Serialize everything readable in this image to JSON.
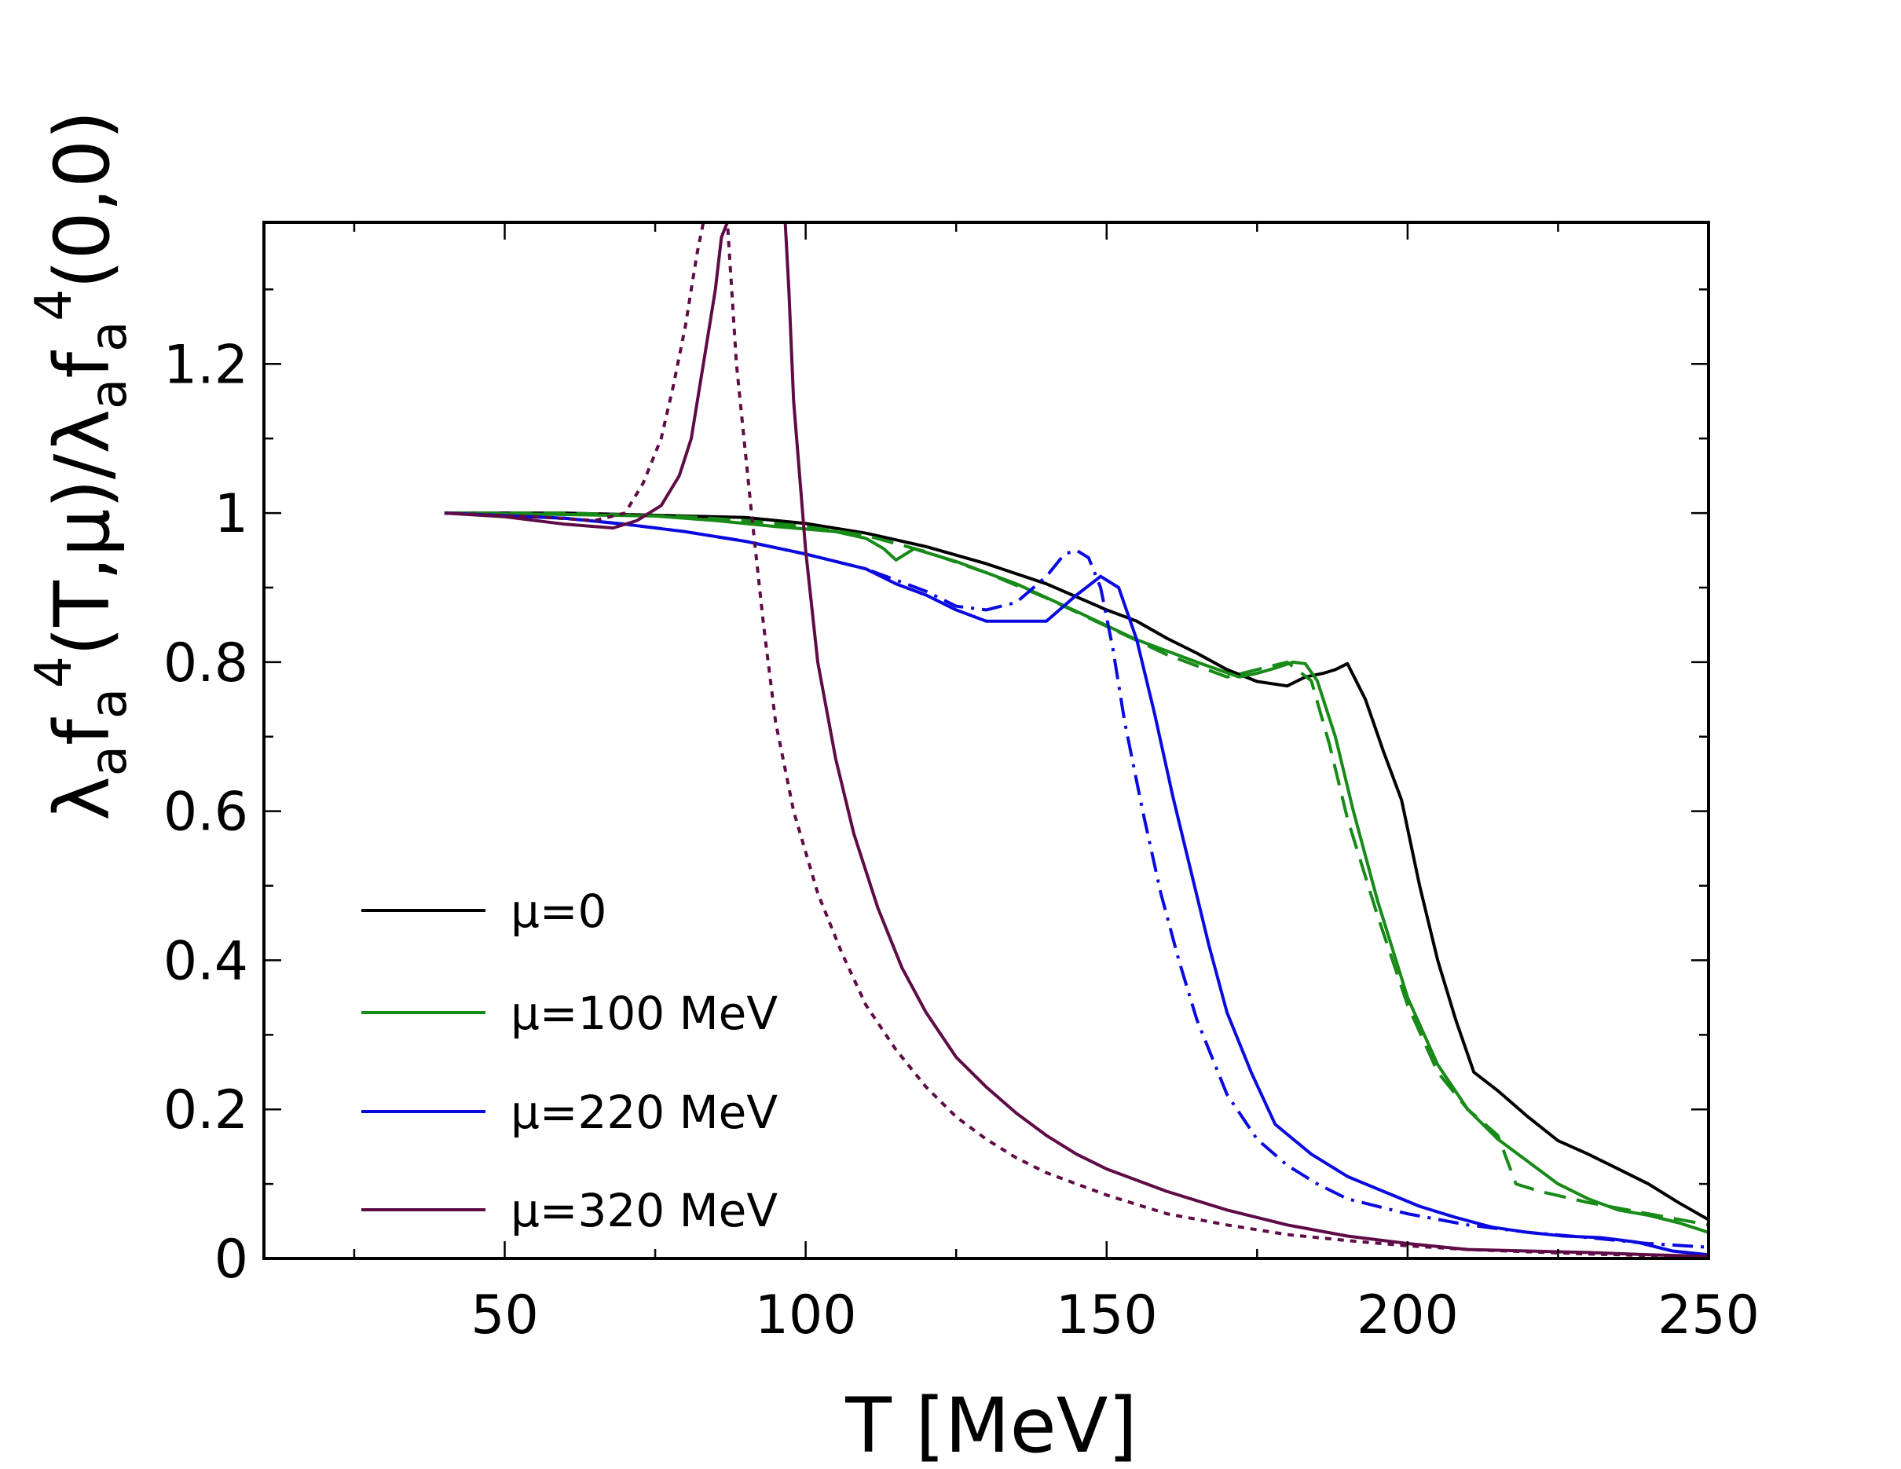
{
  "chart_data": {
    "type": "line",
    "title": "",
    "xlabel": "T [MeV]",
    "ylabel": {
      "main": "λ",
      "sub1": "a",
      "part2": "f",
      "sub2": "a",
      "sup2": "4",
      "part3": "(T,μ)/λ",
      "sub3": "a",
      "part4": "f",
      "sub4": "a",
      "sup4": "4",
      "part5": "(0,0)"
    },
    "xlim": [
      10,
      250
    ],
    "ylim": [
      0,
      1.39
    ],
    "xticks": [
      50,
      100,
      150,
      200,
      250
    ],
    "xtick_labels": [
      "50",
      "100",
      "150",
      "200",
      "250"
    ],
    "yticks": [
      0,
      0.2,
      0.4,
      0.6,
      0.8,
      1,
      1.2
    ],
    "ytick_labels": [
      "0",
      "0.2",
      "0.4",
      "0.6",
      "0.8",
      "1",
      "1.2"
    ],
    "legend_position": "lower-left",
    "legend": [
      "μ=0",
      "μ=100 MeV",
      "μ=220 MeV",
      "μ=320 MeV"
    ],
    "series": [
      {
        "name": "μ=0",
        "color": "#000000",
        "dash": "solid",
        "x": [
          40,
          60,
          80,
          90,
          100,
          110,
          120,
          130,
          140,
          150,
          155,
          160,
          165,
          170,
          175,
          180,
          183,
          186,
          188,
          190,
          193,
          196,
          199,
          202,
          205,
          208,
          211,
          215,
          220,
          225,
          230,
          235,
          240,
          245,
          250
        ],
        "y": [
          1.0,
          1.0,
          0.996,
          0.994,
          0.986,
          0.973,
          0.955,
          0.932,
          0.905,
          0.87,
          0.855,
          0.832,
          0.812,
          0.79,
          0.774,
          0.768,
          0.78,
          0.785,
          0.79,
          0.798,
          0.75,
          0.68,
          0.615,
          0.5,
          0.4,
          0.32,
          0.25,
          0.225,
          0.19,
          0.158,
          0.14,
          0.12,
          0.1,
          0.075,
          0.052
        ]
      },
      {
        "name": "μ=100 MeV (solid)",
        "color": "#178a17",
        "dash": "solid",
        "x": [
          40,
          60,
          75,
          85,
          95,
          105,
          110,
          113,
          115,
          118,
          125,
          135,
          145,
          155,
          165,
          172,
          175,
          178,
          181,
          183,
          185,
          188,
          191,
          195,
          200,
          205,
          210,
          215,
          220,
          225,
          230,
          235,
          240,
          245,
          250
        ],
        "y": [
          1.0,
          0.998,
          0.996,
          0.99,
          0.982,
          0.975,
          0.966,
          0.952,
          0.937,
          0.952,
          0.935,
          0.905,
          0.868,
          0.83,
          0.8,
          0.78,
          0.785,
          0.792,
          0.8,
          0.798,
          0.775,
          0.7,
          0.6,
          0.48,
          0.35,
          0.26,
          0.2,
          0.16,
          0.13,
          0.1,
          0.08,
          0.065,
          0.058,
          0.048,
          0.035
        ]
      },
      {
        "name": "μ=100 MeV (dashed)",
        "color": "#178a17",
        "dash": "28 14",
        "x": [
          40,
          60,
          80,
          90,
          100,
          110,
          120,
          130,
          140,
          150,
          160,
          170,
          175,
          180,
          184,
          187,
          190,
          195,
          200,
          205,
          210,
          215,
          218,
          222,
          230,
          240,
          250
        ],
        "y": [
          1.0,
          1.0,
          0.995,
          0.99,
          0.982,
          0.97,
          0.948,
          0.92,
          0.886,
          0.848,
          0.81,
          0.78,
          0.79,
          0.8,
          0.775,
          0.69,
          0.59,
          0.46,
          0.34,
          0.25,
          0.2,
          0.165,
          0.1,
          0.09,
          0.075,
          0.06,
          0.045
        ]
      },
      {
        "name": "μ=220 MeV (solid)",
        "color": "#0a0ae0",
        "dash": "solid",
        "x": [
          40,
          60,
          70,
          80,
          90,
          100,
          110,
          115,
          120,
          125,
          130,
          135,
          140,
          145,
          149,
          152,
          155,
          158,
          161,
          164,
          167,
          170,
          174,
          178,
          184,
          190,
          196,
          202,
          208,
          214,
          220,
          226,
          232,
          238,
          244,
          250
        ],
        "y": [
          1.0,
          0.993,
          0.985,
          0.975,
          0.962,
          0.945,
          0.925,
          0.905,
          0.89,
          0.87,
          0.855,
          0.855,
          0.855,
          0.89,
          0.915,
          0.9,
          0.83,
          0.73,
          0.62,
          0.52,
          0.42,
          0.33,
          0.25,
          0.18,
          0.14,
          0.11,
          0.09,
          0.07,
          0.055,
          0.042,
          0.035,
          0.03,
          0.028,
          0.022,
          0.01,
          0.005
        ]
      },
      {
        "name": "μ=220 MeV (dash-dot)",
        "color": "#0a0ae0",
        "dash": "26 10 4 10",
        "x": [
          40,
          60,
          70,
          80,
          90,
          100,
          110,
          120,
          125,
          130,
          135,
          140,
          143,
          145,
          147,
          149,
          151,
          153,
          156,
          159,
          162,
          165,
          170,
          175,
          180,
          185,
          190,
          200,
          210,
          220,
          230,
          240,
          250
        ],
        "y": [
          1.0,
          0.993,
          0.985,
          0.975,
          0.962,
          0.945,
          0.925,
          0.895,
          0.875,
          0.87,
          0.88,
          0.915,
          0.945,
          0.95,
          0.94,
          0.9,
          0.82,
          0.72,
          0.6,
          0.49,
          0.4,
          0.32,
          0.22,
          0.16,
          0.125,
          0.1,
          0.08,
          0.06,
          0.045,
          0.035,
          0.028,
          0.02,
          0.015
        ]
      },
      {
        "name": "μ=320 MeV (solid)",
        "color": "#5e0b46",
        "dash": "solid",
        "x": [
          40,
          50,
          60,
          68,
          72,
          76,
          79,
          81,
          83,
          85,
          86,
          87,
          87.6,
          96.6,
          97.2,
          98,
          100,
          102,
          105,
          108,
          112,
          116,
          120,
          125,
          130,
          135,
          140,
          145,
          150,
          160,
          170,
          180,
          190,
          200,
          210,
          220,
          230,
          240,
          250
        ],
        "y": [
          1.0,
          0.995,
          0.985,
          0.98,
          0.99,
          1.01,
          1.05,
          1.1,
          1.2,
          1.3,
          1.37,
          1.39,
          1.39,
          1.39,
          1.3,
          1.15,
          0.95,
          0.8,
          0.67,
          0.57,
          0.47,
          0.39,
          0.33,
          0.27,
          0.23,
          0.195,
          0.165,
          0.14,
          0.12,
          0.09,
          0.065,
          0.045,
          0.03,
          0.02,
          0.012,
          0.01,
          0.008,
          0.005,
          0.003
        ]
      },
      {
        "name": "μ=320 MeV (dotted)",
        "color": "#5e0b46",
        "dash": "8 8",
        "x": [
          40,
          55,
          65,
          70,
          73,
          76,
          78,
          80,
          81,
          82,
          83,
          84,
          85,
          86,
          87,
          88.5,
          91,
          93,
          95,
          98,
          102,
          106,
          110,
          115,
          120,
          125,
          130,
          135,
          140,
          150,
          160,
          170,
          180,
          190,
          200,
          210,
          220,
          230,
          240,
          250
        ],
        "y": [
          1.0,
          0.995,
          0.99,
          1.0,
          1.04,
          1.1,
          1.17,
          1.25,
          1.3,
          1.35,
          1.39,
          1.39,
          1.39,
          1.39,
          1.39,
          1.2,
          1.0,
          0.85,
          0.72,
          0.6,
          0.49,
          0.41,
          0.34,
          0.28,
          0.23,
          0.19,
          0.16,
          0.135,
          0.115,
          0.085,
          0.06,
          0.045,
          0.032,
          0.024,
          0.017,
          0.012,
          0.009,
          0.006,
          0.004,
          0.002
        ]
      }
    ]
  }
}
